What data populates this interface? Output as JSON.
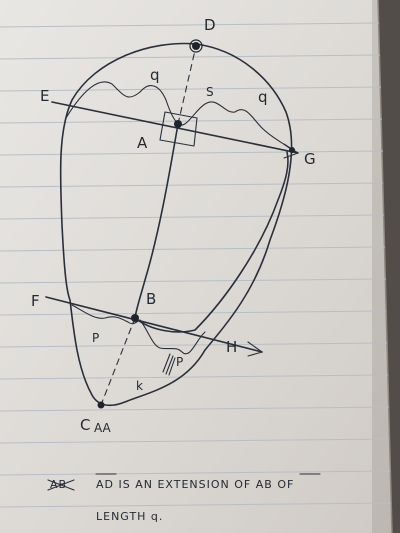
{
  "sketch": {
    "points": {
      "d": "D",
      "e": "E",
      "a": "A",
      "g": "G",
      "f": "F",
      "b": "B",
      "h": "H",
      "c": "C"
    },
    "segment_labels": {
      "q_left": "q",
      "q_right": "q",
      "s": "S",
      "p_left": "P",
      "p_right": "P",
      "k": "k"
    },
    "c_overstrike": "AA",
    "note": {
      "struck_word": "AB",
      "line1": "AD IS AN EXTENSION OF AB OF",
      "line2": "LENGTH q."
    }
  }
}
